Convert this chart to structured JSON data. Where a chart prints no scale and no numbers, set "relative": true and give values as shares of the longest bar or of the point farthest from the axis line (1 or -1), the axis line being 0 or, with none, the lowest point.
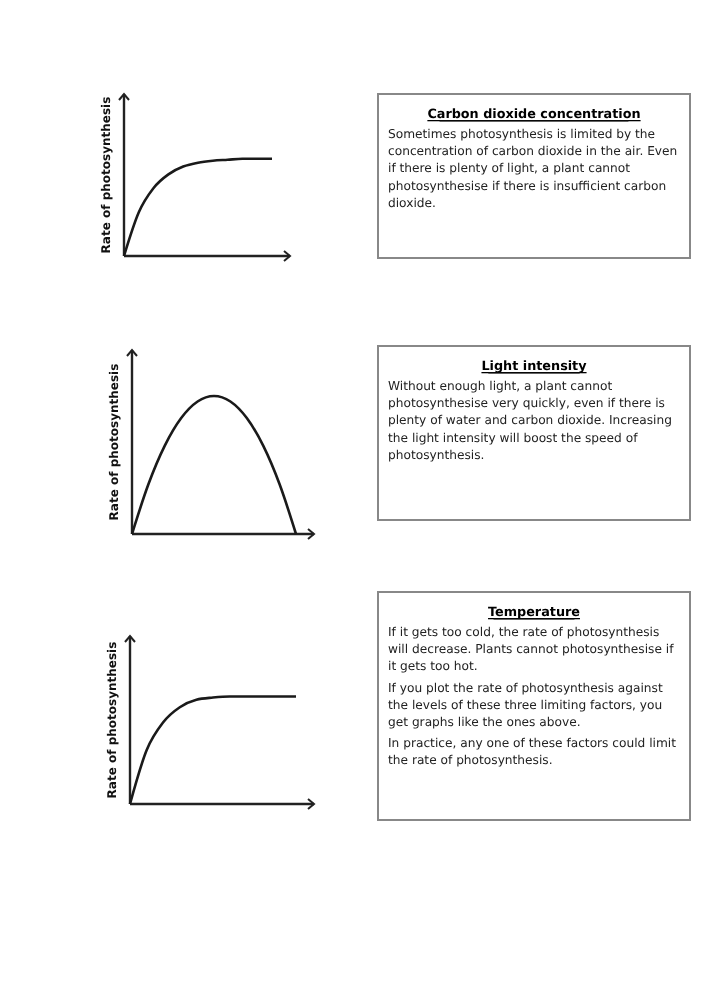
{
  "chart_data": [
    {
      "type": "line",
      "ylabel": "Rate of photosynthesis",
      "relative": true,
      "color": "#1a1a1a",
      "categories": [
        null,
        null,
        null,
        null,
        null,
        null,
        null,
        null,
        null,
        null,
        null
      ],
      "values": [
        0,
        0.45,
        0.7,
        0.84,
        0.92,
        0.96,
        0.98,
        0.99,
        1,
        1,
        1
      ]
    },
    {
      "type": "other",
      "title": "Carbon dioxide concentration",
      "annotations": [
        "Sometimes photosynthesis is limited by the concentration of carbon dioxide in the air. Even if there is plenty of light, a plant cannot photosynthesise if there is insufficient carbon dioxide."
      ]
    },
    {
      "type": "line",
      "ylabel": "Rate of photosynthesis",
      "relative": true,
      "color": "#1a1a1a",
      "categories": [
        null,
        null,
        null,
        null,
        null,
        null,
        null,
        null,
        null,
        null,
        null
      ],
      "values": [
        0,
        0.36,
        0.64,
        0.84,
        0.96,
        1,
        0.96,
        0.84,
        0.64,
        0.36,
        0
      ]
    },
    {
      "type": "other",
      "title": "Light intensity",
      "annotations": [
        "Without enough light, a plant cannot photosynthesise very quickly, even if there is plenty of water and carbon dioxide. Increasing the light intensity will boost the speed of photosynthesis."
      ]
    },
    {
      "type": "line",
      "ylabel": "Rate of photosynthesis",
      "relative": true,
      "color": "#1a1a1a",
      "categories": [
        null,
        null,
        null,
        null,
        null,
        null,
        null,
        null,
        null,
        null,
        null
      ],
      "values": [
        0,
        0.5,
        0.76,
        0.9,
        0.97,
        0.99,
        1,
        1,
        1,
        1,
        1
      ]
    },
    {
      "type": "other",
      "title": "Temperature",
      "annotations": [
        "If it gets too cold, the rate of photosynthesis will decrease. Plants cannot photosynthesise if it gets too hot.",
        "If you plot the rate of photosynthesis against the levels of these three limiting factors, you get graphs like the ones above.",
        "In practice, any one of these factors could limit the rate of photosynthesis."
      ]
    }
  ]
}
